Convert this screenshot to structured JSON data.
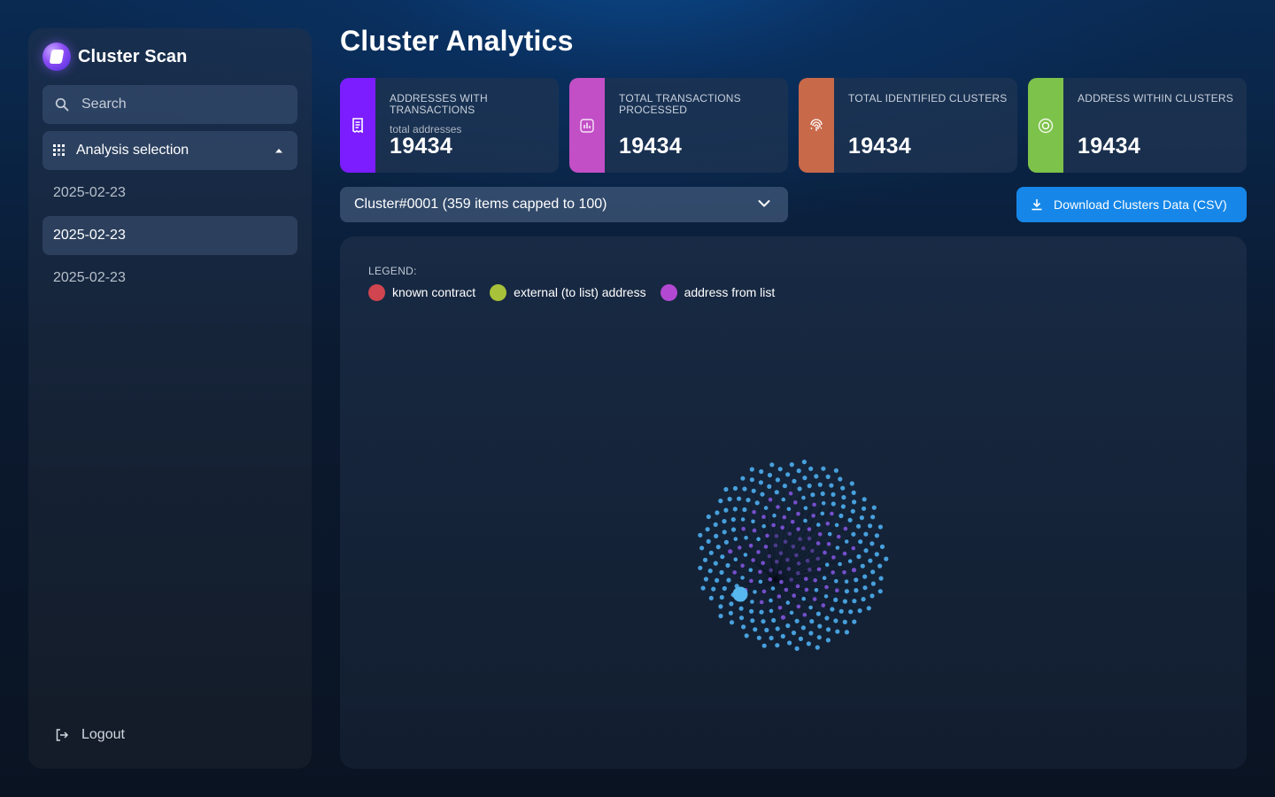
{
  "app": {
    "name": "Cluster Scan"
  },
  "sidebar": {
    "search": {
      "placeholder": "Search"
    },
    "analysis_selection": {
      "label": "Analysis selection"
    },
    "dates": [
      {
        "label": "2025-02-23",
        "active": false
      },
      {
        "label": "2025-02-23",
        "active": true
      },
      {
        "label": "2025-02-23",
        "active": false
      }
    ],
    "logout_label": "Logout"
  },
  "main": {
    "title": "Cluster Analytics",
    "stats": [
      {
        "label": "ADDRESSES WITH TRANSACTIONS",
        "sublabel": "total addresses",
        "value": "19434",
        "color": "#7b1dff",
        "icon": "receipt-icon"
      },
      {
        "label": "TOTAL TRANSACTIONS PROCESSED",
        "sublabel": "",
        "value": "19434",
        "color": "#c24fc6",
        "icon": "bar-chart-icon"
      },
      {
        "label": "TOTAL IDENTIFIED CLUSTERS",
        "sublabel": "",
        "value": "19434",
        "color": "#c8694a",
        "icon": "fingerprint-icon"
      },
      {
        "label": "ADDRESS WITHIN CLUSTERS",
        "sublabel": "",
        "value": "19434",
        "color": "#7dc24a",
        "icon": "target-icon"
      }
    ],
    "cluster_select": {
      "value": "Cluster#0001 (359 items capped to 100)"
    },
    "download_button": {
      "label": "Download Clusters Data (CSV)",
      "color": "#1687e8"
    },
    "legend": {
      "title": "LEGEND:",
      "items": [
        {
          "label": "known contract",
          "color": "#d0454f"
        },
        {
          "label": "external (to list) address",
          "color": "#a7c23a"
        },
        {
          "label": "address from list",
          "color": "#b349d2"
        }
      ]
    },
    "graph": {
      "node_colors": {
        "outer": "#4aa8e6",
        "inner": "#7a52d6",
        "highlight": "#56b8ee"
      }
    }
  }
}
